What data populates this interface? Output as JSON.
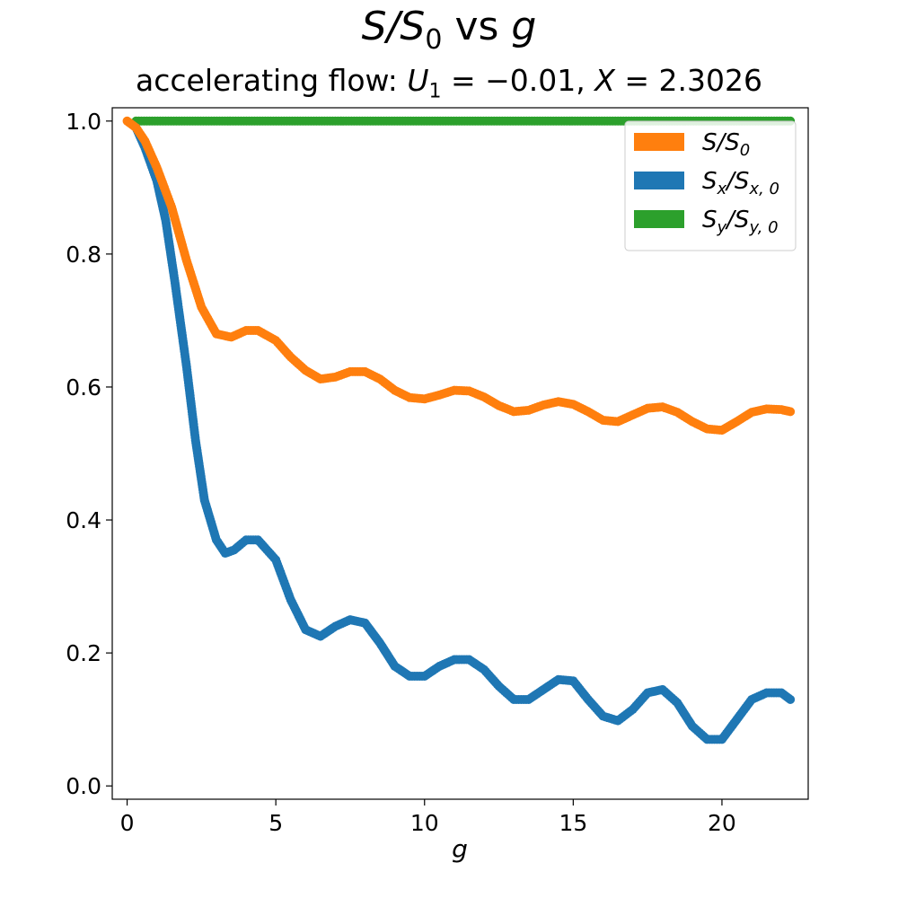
{
  "title": {
    "main_var": "S/S",
    "main_sub": "0",
    "main_rest": " vs ",
    "main_g": "g"
  },
  "subtitle": {
    "prefix": "accelerating flow: ",
    "u_var": "U",
    "u_sub": "1",
    "u_eq": " = −0.01, ",
    "x_var": "X",
    "x_eq": " = 2.3026"
  },
  "chart_data": {
    "type": "scatter",
    "xlabel": "g",
    "ylabel": "",
    "xlim": [
      -0.5,
      22.9
    ],
    "ylim": [
      -0.02,
      1.02
    ],
    "xticks": [
      0,
      5,
      10,
      15,
      20
    ],
    "xtick_labels": [
      "0",
      "5",
      "10",
      "15",
      "20"
    ],
    "yticks": [
      0.0,
      0.2,
      0.4,
      0.6,
      0.8,
      1.0
    ],
    "ytick_labels": [
      "0.0",
      "0.2",
      "0.4",
      "0.6",
      "0.8",
      "1.0"
    ],
    "grid": false,
    "legend_position": "top-right",
    "series": [
      {
        "name": "S/S0",
        "label_main": "S/S",
        "label_sub": "0",
        "color": "#ff7f0e",
        "x": [
          0.0,
          0.3,
          0.6,
          1.0,
          1.5,
          2.0,
          2.5,
          3.0,
          3.5,
          4.0,
          4.4,
          5.0,
          5.5,
          6.0,
          6.5,
          7.0,
          7.5,
          8.0,
          8.5,
          9.0,
          9.5,
          10.0,
          10.5,
          11.0,
          11.5,
          12.0,
          12.5,
          13.0,
          13.5,
          14.0,
          14.5,
          15.0,
          15.5,
          16.0,
          16.5,
          17.0,
          17.5,
          18.0,
          18.5,
          19.0,
          19.5,
          20.0,
          20.5,
          21.0,
          21.5,
          22.0,
          22.3
        ],
        "y": [
          1.0,
          0.99,
          0.97,
          0.93,
          0.87,
          0.79,
          0.72,
          0.68,
          0.675,
          0.685,
          0.685,
          0.67,
          0.645,
          0.625,
          0.612,
          0.615,
          0.623,
          0.623,
          0.612,
          0.595,
          0.584,
          0.582,
          0.588,
          0.595,
          0.594,
          0.585,
          0.572,
          0.563,
          0.565,
          0.573,
          0.578,
          0.574,
          0.563,
          0.55,
          0.548,
          0.558,
          0.568,
          0.57,
          0.562,
          0.548,
          0.537,
          0.535,
          0.548,
          0.562,
          0.567,
          0.566,
          0.563
        ]
      },
      {
        "name": "Sx/Sx,0",
        "label_main": "S",
        "label_sub": "x",
        "label_main2": "/S",
        "label_sub2": "x, 0",
        "color": "#1f77b4",
        "x": [
          0.3,
          0.6,
          1.0,
          1.3,
          1.6,
          2.0,
          2.3,
          2.6,
          3.0,
          3.3,
          3.6,
          4.0,
          4.4,
          5.0,
          5.5,
          6.0,
          6.5,
          7.0,
          7.5,
          8.0,
          8.5,
          9.0,
          9.5,
          10.0,
          10.5,
          11.0,
          11.5,
          12.0,
          12.5,
          13.0,
          13.5,
          14.0,
          14.5,
          15.0,
          15.5,
          16.0,
          16.5,
          17.0,
          17.5,
          18.0,
          18.5,
          19.0,
          19.5,
          20.0,
          20.5,
          21.0,
          21.5,
          22.0,
          22.3
        ],
        "y": [
          0.99,
          0.96,
          0.91,
          0.85,
          0.76,
          0.63,
          0.52,
          0.43,
          0.37,
          0.35,
          0.355,
          0.37,
          0.37,
          0.34,
          0.28,
          0.235,
          0.225,
          0.24,
          0.25,
          0.245,
          0.215,
          0.18,
          0.165,
          0.165,
          0.18,
          0.19,
          0.19,
          0.175,
          0.15,
          0.13,
          0.13,
          0.145,
          0.16,
          0.158,
          0.13,
          0.105,
          0.098,
          0.115,
          0.14,
          0.145,
          0.125,
          0.09,
          0.07,
          0.07,
          0.1,
          0.13,
          0.14,
          0.14,
          0.13
        ]
      },
      {
        "name": "Sy/Sy,0",
        "label_main": "S",
        "label_sub": "y",
        "label_main2": "/S",
        "label_sub2": "y, 0",
        "color": "#2ca02c",
        "x": [
          0.3,
          22.3
        ],
        "y": [
          1.0,
          1.0
        ]
      }
    ]
  }
}
